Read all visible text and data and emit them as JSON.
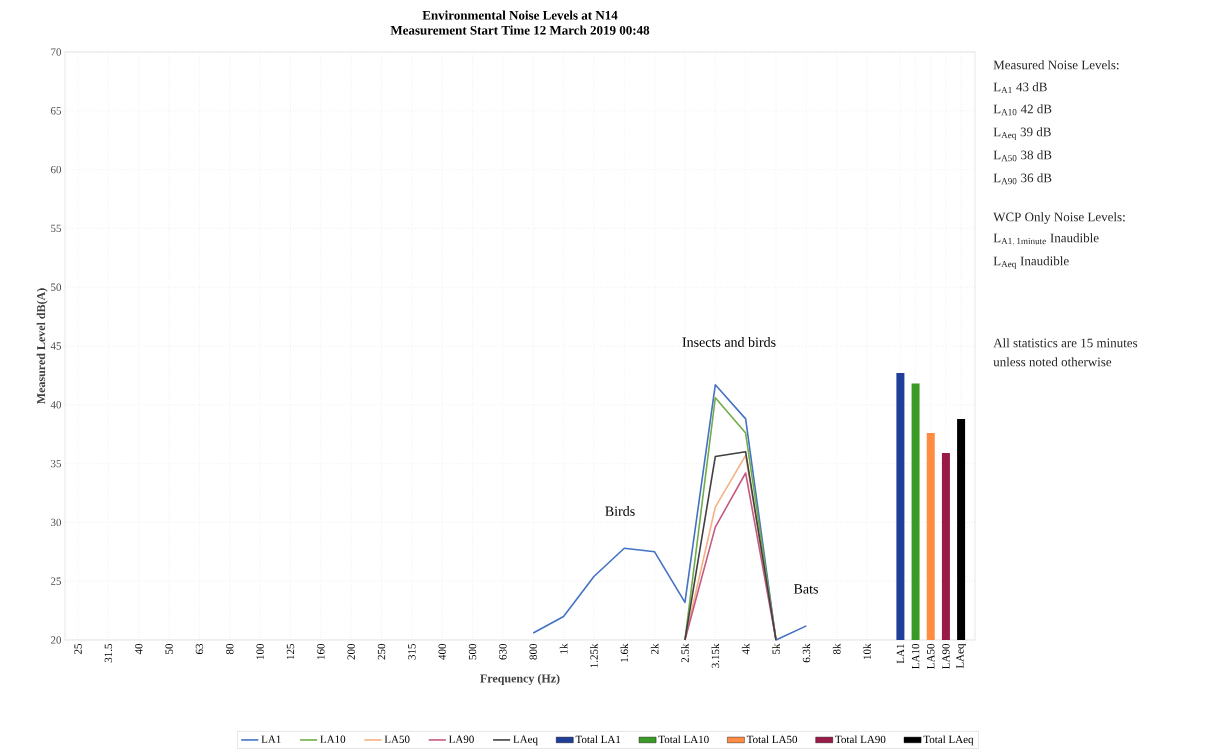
{
  "chart_data": {
    "type": "line",
    "title": "Environmental Noise Levels at N14",
    "subtitle": "Measurement Start Time 12 March 2019 00:48",
    "xlabel": "Frequency (Hz)",
    "ylabel": "Measured Level dB(A)",
    "categories": [
      "25",
      "31.5",
      "40",
      "50",
      "63",
      "80",
      "100",
      "125",
      "160",
      "200",
      "250",
      "315",
      "400",
      "500",
      "630",
      "800",
      "1k",
      "1.25k",
      "1.6k",
      "2k",
      "2.5k",
      "3.15k",
      "4k",
      "5k",
      "6.3k",
      "8k",
      "10k",
      "LA1",
      "LA10",
      "LA50",
      "LA90",
      "LAeq"
    ],
    "series": [
      {
        "name": "LA1",
        "color": "#4472c4",
        "values": [
          null,
          null,
          null,
          null,
          null,
          null,
          null,
          null,
          null,
          null,
          null,
          null,
          null,
          null,
          null,
          20.6,
          22.0,
          25.4,
          27.8,
          27.5,
          23.2,
          41.7,
          38.8,
          20,
          21.2,
          null,
          null,
          null,
          null,
          null,
          null,
          null
        ]
      },
      {
        "name": "LA10",
        "color": "#70ad47",
        "values": [
          null,
          null,
          null,
          null,
          null,
          null,
          null,
          null,
          null,
          null,
          null,
          null,
          null,
          null,
          null,
          null,
          null,
          null,
          null,
          null,
          20,
          40.6,
          37.6,
          20,
          null,
          null,
          null,
          null,
          null,
          null,
          null,
          null
        ]
      },
      {
        "name": "LA50",
        "color": "#f4b183",
        "values": [
          null,
          null,
          null,
          null,
          null,
          null,
          null,
          null,
          null,
          null,
          null,
          null,
          null,
          null,
          null,
          null,
          null,
          null,
          null,
          null,
          20,
          31.3,
          35.7,
          20,
          null,
          null,
          null,
          null,
          null,
          null,
          null,
          null
        ]
      },
      {
        "name": "LA90",
        "color": "#c55a80",
        "values": [
          null,
          null,
          null,
          null,
          null,
          null,
          null,
          null,
          null,
          null,
          null,
          null,
          null,
          null,
          null,
          null,
          null,
          null,
          null,
          null,
          20,
          29.6,
          34.2,
          20,
          null,
          null,
          null,
          null,
          null,
          null,
          null,
          null
        ]
      },
      {
        "name": "LAeq",
        "color": "#404040",
        "values": [
          null,
          null,
          null,
          null,
          null,
          null,
          null,
          null,
          null,
          null,
          null,
          null,
          null,
          null,
          null,
          null,
          null,
          null,
          null,
          null,
          20,
          35.6,
          36.0,
          20,
          null,
          null,
          null,
          null,
          null,
          null,
          null,
          null
        ]
      },
      {
        "name": "Total LA1",
        "type": "bar",
        "color": "#1f3e99",
        "values": [
          null,
          null,
          null,
          null,
          null,
          null,
          null,
          null,
          null,
          null,
          null,
          null,
          null,
          null,
          null,
          null,
          null,
          null,
          null,
          null,
          null,
          null,
          null,
          null,
          null,
          null,
          null,
          42.7,
          null,
          null,
          null,
          null
        ]
      },
      {
        "name": "Total LA10",
        "type": "bar",
        "color": "#3a9a26",
        "values": [
          null,
          null,
          null,
          null,
          null,
          null,
          null,
          null,
          null,
          null,
          null,
          null,
          null,
          null,
          null,
          null,
          null,
          null,
          null,
          null,
          null,
          null,
          null,
          null,
          null,
          null,
          null,
          null,
          41.8,
          null,
          null,
          null
        ]
      },
      {
        "name": "Total LA50",
        "type": "bar",
        "color": "#ff8c42",
        "values": [
          null,
          null,
          null,
          null,
          null,
          null,
          null,
          null,
          null,
          null,
          null,
          null,
          null,
          null,
          null,
          null,
          null,
          null,
          null,
          null,
          null,
          null,
          null,
          null,
          null,
          null,
          null,
          null,
          null,
          37.6,
          null,
          null
        ]
      },
      {
        "name": "Total LA90",
        "type": "bar",
        "color": "#9b1b48",
        "values": [
          null,
          null,
          null,
          null,
          null,
          null,
          null,
          null,
          null,
          null,
          null,
          null,
          null,
          null,
          null,
          null,
          null,
          null,
          null,
          null,
          null,
          null,
          null,
          null,
          null,
          null,
          null,
          null,
          null,
          null,
          35.9,
          null
        ]
      },
      {
        "name": "Total LAeq",
        "type": "bar",
        "color": "#000000",
        "values": [
          null,
          null,
          null,
          null,
          null,
          null,
          null,
          null,
          null,
          null,
          null,
          null,
          null,
          null,
          null,
          null,
          null,
          null,
          null,
          null,
          null,
          null,
          null,
          null,
          null,
          null,
          null,
          null,
          null,
          null,
          null,
          38.8
        ]
      }
    ],
    "ylim": [
      20,
      70
    ],
    "yticks": [
      20,
      25,
      30,
      35,
      40,
      45,
      50,
      55,
      60,
      65,
      70
    ],
    "grid": true,
    "legend": "bottom",
    "line_style": "solid",
    "marker": "none",
    "annotations": [
      "Birds",
      "Insects and birds",
      "Bats",
      "Measured Noise Levels:",
      "L$_{A1}$ 43 dB",
      "L$_{A10}$ 42 dB",
      "L$_{Aeq}$ 39 dB",
      "L$_{A50}$ 38 dB",
      "L$_{A90}$ 36 dB",
      "WCP Only Noise Levels:",
      "\\mathrm{L_{A1,\\,1minute}\\ Inaudible}",
      "L$_{Aeq}$ Inaudible",
      "All statistics are 15 minutes",
      "unless noted otherwise"
    ]
  }
}
